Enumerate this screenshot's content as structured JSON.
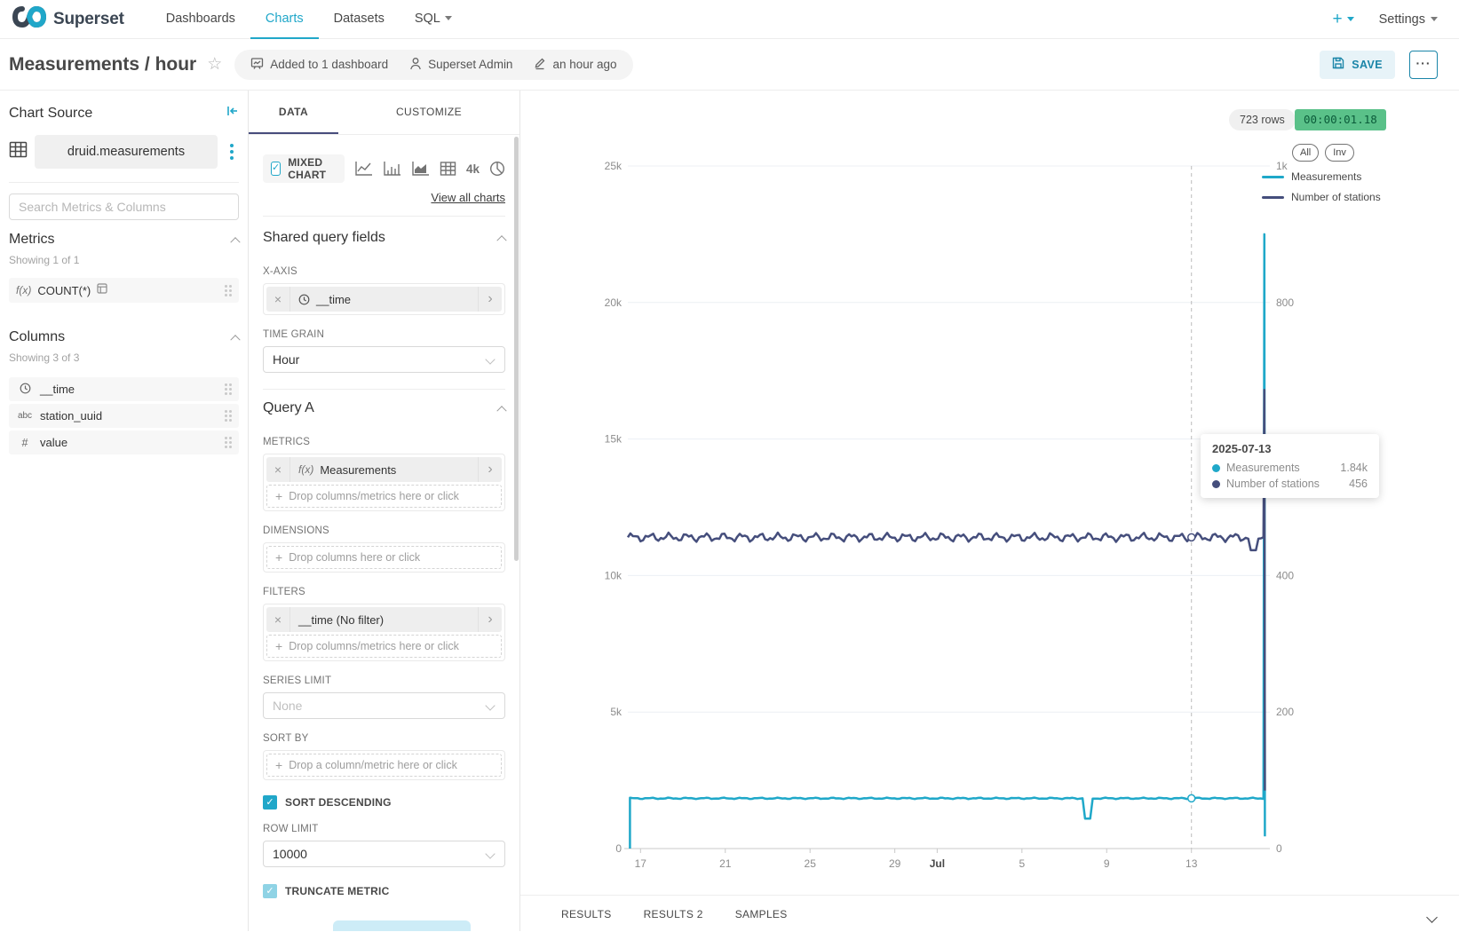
{
  "colors": {
    "primary": "#20a7c9",
    "series1": "#1fa8c9",
    "series2": "#454e7c",
    "timer_bg": "#5ac189"
  },
  "icons": {
    "close": "×",
    "chevron_right": "›",
    "star": "☆",
    "check": "✓",
    "plus": "+",
    "more": "···"
  },
  "nav": {
    "brand": "Superset",
    "items": [
      {
        "label": "Dashboards"
      },
      {
        "label": "Charts"
      },
      {
        "label": "Datasets"
      },
      {
        "label": "SQL"
      }
    ],
    "new_label": "+",
    "settings_label": "Settings"
  },
  "header": {
    "title": "Measurements / hour",
    "added_to": "Added to 1 dashboard",
    "owner": "Superset Admin",
    "modified": "an hour ago",
    "save_label": "SAVE"
  },
  "datasource": {
    "panel_title": "Chart Source",
    "name": "druid.measurements",
    "search_placeholder": "Search Metrics & Columns",
    "metrics": {
      "title": "Metrics",
      "showing": "Showing 1 of 1",
      "items": [
        {
          "prefix": "f(x)",
          "label": "COUNT(*)"
        }
      ]
    },
    "columns": {
      "title": "Columns",
      "showing": "Showing 3 of 3",
      "items": [
        {
          "type": "time",
          "label": "__time"
        },
        {
          "type": "text",
          "prefix": "abc",
          "label": "station_uuid"
        },
        {
          "type": "number",
          "prefix": "#",
          "label": "value"
        }
      ]
    }
  },
  "controls": {
    "tabs": [
      {
        "label": "DATA"
      },
      {
        "label": "CUSTOMIZE"
      }
    ],
    "viz": {
      "selected": "MIXED CHART",
      "alt_label": "4k",
      "view_all": "View all charts"
    },
    "shared": {
      "title": "Shared query fields",
      "x_axis_label": "X-AXIS",
      "x_axis_value": "__time",
      "time_grain_label": "TIME GRAIN",
      "time_grain_value": "Hour"
    },
    "query_a": {
      "title": "Query A",
      "metrics_label": "METRICS",
      "metric_prefix": "f(x)",
      "metric_value": "Measurements",
      "drop_metrics": "Drop columns/metrics here or click",
      "dimensions_label": "DIMENSIONS",
      "drop_columns": "Drop columns here or click",
      "filters_label": "FILTERS",
      "filter_value": "__time (No filter)",
      "series_limit_label": "SERIES LIMIT",
      "series_limit_value": "None",
      "sort_by_label": "SORT BY",
      "drop_sort": "Drop a column/metric here or click",
      "sort_descending": "SORT DESCENDING",
      "row_limit_label": "ROW LIMIT",
      "row_limit_value": "10000",
      "truncate_metric": "TRUNCATE METRIC"
    }
  },
  "chart": {
    "rows_badge": "723 rows",
    "timer": "00:00:01.18",
    "legend_buttons": [
      {
        "label": "All"
      },
      {
        "label": "Inv"
      }
    ],
    "legend": [
      {
        "name": "Measurements",
        "color": "#1fa8c9"
      },
      {
        "name": "Number of stations",
        "color": "#454e7c"
      }
    ],
    "tooltip": {
      "date": "2025-07-13",
      "rows": [
        {
          "name": "Measurements",
          "value": "1.84k",
          "color": "#1fa8c9"
        },
        {
          "name": "Number of stations",
          "value": "456",
          "color": "#454e7c"
        }
      ]
    },
    "results_tabs": [
      {
        "label": "RESULTS"
      },
      {
        "label": "RESULTS 2"
      },
      {
        "label": "SAMPLES"
      }
    ]
  },
  "chart_data": {
    "type": "line",
    "title": "Measurements / hour",
    "grid": true,
    "legend_position": "top-right",
    "x_domain_days": [
      0,
      30.3
    ],
    "x_ticks": [
      {
        "label": "17",
        "day": 0.6
      },
      {
        "label": "21",
        "day": 4.6
      },
      {
        "label": "25",
        "day": 8.6
      },
      {
        "label": "29",
        "day": 12.6
      },
      {
        "label": "Jul",
        "day": 14.6,
        "bold": true
      },
      {
        "label": "5",
        "day": 18.6
      },
      {
        "label": "9",
        "day": 22.6
      },
      {
        "label": "13",
        "day": 26.6
      }
    ],
    "y_left": {
      "max": 25000,
      "ticks": [
        {
          "label": "0",
          "value": 0
        },
        {
          "label": "5k",
          "value": 5000
        },
        {
          "label": "10k",
          "value": 10000
        },
        {
          "label": "15k",
          "value": 15000
        },
        {
          "label": "20k",
          "value": 20000
        },
        {
          "label": "25k",
          "value": 25000
        }
      ]
    },
    "y_right": {
      "max": 1000,
      "ticks": [
        {
          "label": "0",
          "value": 0
        },
        {
          "label": "200",
          "value": 200
        },
        {
          "label": "400",
          "value": 400
        },
        {
          "label": "600",
          "value": 600
        },
        {
          "label": "800",
          "value": 800
        },
        {
          "label": "1k",
          "value": 1000
        }
      ]
    },
    "series": [
      {
        "name": "Measurements",
        "axis": "left",
        "color": "#1fa8c9",
        "baseline": 1840,
        "start_day": 0.1,
        "start_value": 0,
        "dip_day": 21.7,
        "dip_value": 1100,
        "end_day": 30.0,
        "end_peak": 22500,
        "end_final": 450
      },
      {
        "name": "Number of stations",
        "axis": "right",
        "color": "#454e7c",
        "baseline": 456,
        "start_day": 0.0,
        "dip_day": 29.5,
        "dip_value": 437,
        "end_day": 30.0,
        "end_peak": 672,
        "end_final": 85
      }
    ],
    "hover": {
      "day": 26.6,
      "date": "2025-07-13",
      "measurements": 1840,
      "stations": 456
    }
  }
}
